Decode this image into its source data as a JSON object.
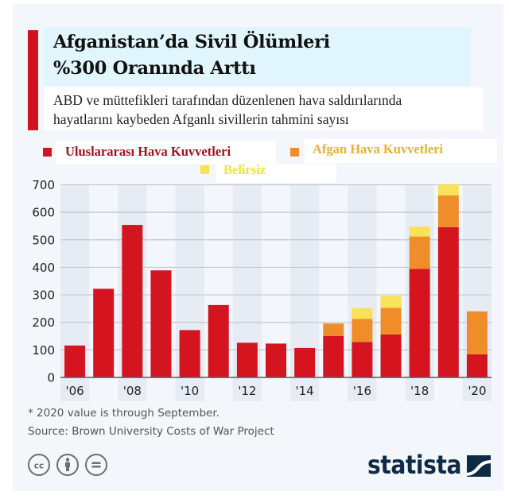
{
  "header": {
    "title_line1": "Afganistan’da Sivil Ölümleri",
    "title_line2": "%300 Oranında Arttı",
    "subtitle_line1": "ABD ve müttefikleri tarafından düzenlenen  hava saldırılarında",
    "subtitle_line2": "hayatlarını kaybeden Afganlı sivillerin tahmini sayısı"
  },
  "colors": {
    "accent": "#d0141f",
    "international": "#d4151f",
    "afghan": "#ef8d2a",
    "unknown": "#f7e258",
    "international_label": "#a3111c",
    "afghan_label": "#e8b32a",
    "unknown_label": "#f2e62a",
    "brand": "#0f2a44"
  },
  "chart_data": {
    "type": "bar",
    "stacked": true,
    "title": "Afganistan’da Sivil Ölümleri %300 Oranında Arttı",
    "subtitle": "ABD ve müttefikleri tarafından düzenlenen  hava saldırılarında hayatlarını kaybeden Afganlı sivillerin tahmini sayısı",
    "xlabel": "",
    "ylabel": "",
    "categories": [
      "2006",
      "2007",
      "2008",
      "2009",
      "2010",
      "2011",
      "2012",
      "2013",
      "2014",
      "2015",
      "2016",
      "2017",
      "2018",
      "2019",
      "2020"
    ],
    "x_tick_labels": [
      "'06",
      "",
      "'08",
      "",
      "'10",
      "",
      "'12",
      "",
      "'14",
      "",
      "'16",
      "",
      "'18",
      "",
      "'20"
    ],
    "series": [
      {
        "name": "Uluslararası Hava Kuvvetleri",
        "color": "#d4151f",
        "values": [
          116,
          322,
          554,
          389,
          172,
          263,
          126,
          123,
          107,
          151,
          129,
          156,
          394,
          546,
          84
        ]
      },
      {
        "name": "Afgan Hava Kuvvetleri",
        "color": "#ef8d2a",
        "values": [
          0,
          0,
          0,
          0,
          0,
          0,
          0,
          0,
          0,
          45,
          84,
          97,
          118,
          115,
          156
        ]
      },
      {
        "name": "Belirsiz",
        "color": "#f7e258",
        "values": [
          0,
          0,
          0,
          0,
          0,
          0,
          0,
          0,
          0,
          0,
          38,
          43,
          36,
          40,
          0
        ]
      }
    ],
    "ylim": [
      0,
      700
    ],
    "y_ticks": [
      0,
      100,
      200,
      300,
      400,
      500,
      600,
      700
    ],
    "grid": true,
    "legend_position": "top"
  },
  "footer": {
    "note": "* 2020 value is through September.",
    "source": "Source: Brown University Costs of War Project",
    "brand": "statista",
    "license_icons": [
      "cc-icon",
      "attribution-icon",
      "no-derivatives-icon"
    ]
  }
}
